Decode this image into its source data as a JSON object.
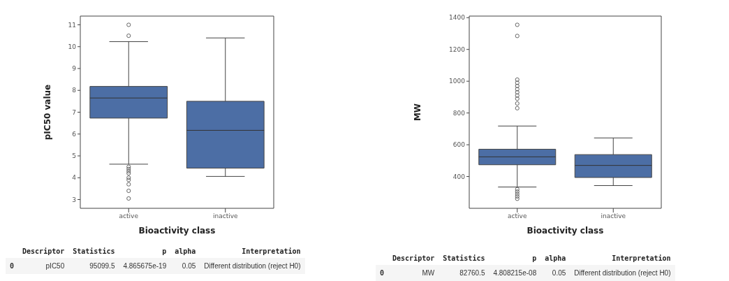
{
  "chart_data": [
    {
      "type": "box",
      "xlabel": "Bioactivity class",
      "ylabel": "pIC50 value",
      "categories": [
        "active",
        "inactive"
      ],
      "ylim": [
        2.6,
        11.4
      ],
      "yticks": [
        3,
        4,
        5,
        6,
        7,
        8,
        9,
        10,
        11
      ],
      "series": [
        {
          "color": "#4c6ea5",
          "boxes": [
            {
              "low": 4.62,
              "q1": 6.73,
              "median": 7.65,
              "q3": 8.18,
              "high": 10.23,
              "outliers": [
                11.0,
                10.5,
                4.5,
                4.4,
                4.3,
                4.2,
                4.0,
                3.9,
                3.7,
                3.4,
                3.05
              ]
            },
            {
              "low": 4.06,
              "q1": 4.44,
              "median": 6.17,
              "q3": 7.5,
              "high": 10.4
            }
          ]
        }
      ]
    },
    {
      "type": "box",
      "xlabel": "Bioactivity class",
      "ylabel": "MW",
      "categories": [
        "active",
        "inactive"
      ],
      "ylim": [
        200,
        1410
      ],
      "yticks": [
        400,
        600,
        800,
        1000,
        1200,
        1400
      ],
      "series": [
        {
          "color": "#4c6ea5",
          "boxes": [
            {
              "low": 334,
              "q1": 474,
              "median": 524,
              "q3": 572,
              "high": 718,
              "outliers": [
                1355,
                1285,
                1010,
                990,
                970,
                950,
                930,
                910,
                890,
                860,
                830,
                320,
                305,
                290,
                275,
                260
              ]
            },
            {
              "low": 343,
              "q1": 394,
              "median": 470,
              "q3": 538,
              "high": 643
            }
          ]
        }
      ]
    },
    {
      "type": "other",
      "categories": [
        null,
        "Descriptor",
        "Statistics",
        "p",
        "alpha",
        "Interpretation"
      ],
      "annotations": [
        "0",
        "pIC50",
        "95099.5",
        "4.865675e-19",
        "0.05",
        "Different distribution (reject H0)"
      ]
    },
    {
      "type": "other",
      "categories": [
        null,
        "Descriptor",
        "Statistics",
        "p",
        "alpha",
        "Interpretation"
      ],
      "annotations": [
        "0",
        "MW",
        "82760.5",
        "4.808215e-08",
        "0.05",
        "Different distribution (reject H0)"
      ]
    }
  ]
}
